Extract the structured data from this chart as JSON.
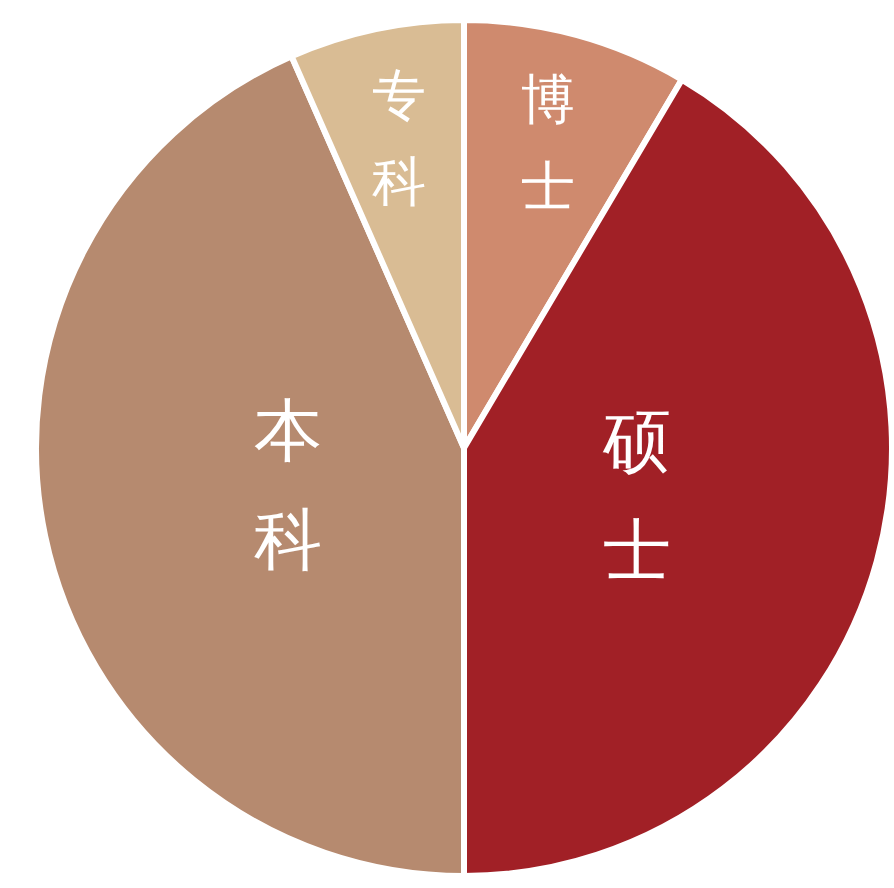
{
  "chart_data": {
    "type": "pie",
    "categories": [
      "博士",
      "硕士",
      "本科",
      "专科"
    ],
    "values": [
      8.5,
      41.5,
      43.4,
      6.6
    ],
    "colors": [
      "#cf8a6e",
      "#a12026",
      "#b68a6f",
      "#d9bc94"
    ]
  }
}
